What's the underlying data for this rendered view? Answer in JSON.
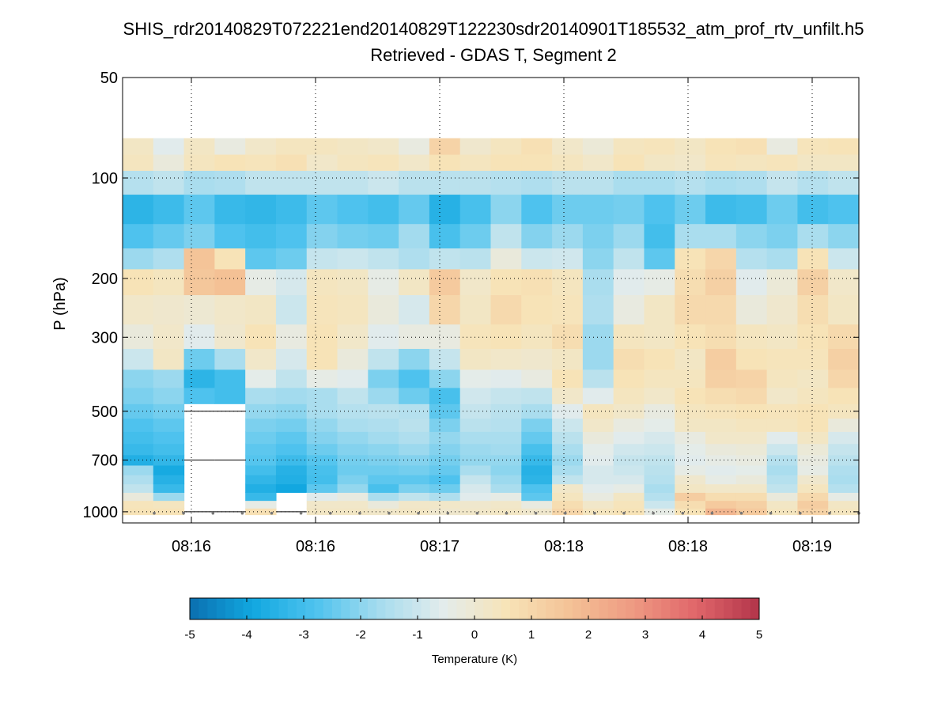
{
  "chart_data": {
    "type": "heatmap",
    "title": "SHIS_rdr20140829T072221end20140829T122230sdr20140901T185532_atm_prof_rtv_unfilt.h5",
    "subtitle": "Retrieved - GDAS T, Segment 2",
    "ylabel": "P (hPa)",
    "xlabel": "",
    "y_scale": "log",
    "y_reversed": true,
    "ylim": [
      50,
      1080
    ],
    "y_ticks": [
      50,
      100,
      200,
      300,
      500,
      700,
      1000
    ],
    "y_tick_labels": [
      "50",
      "100",
      "200",
      "300",
      "500",
      "700",
      "1000"
    ],
    "x_tick_labels": [
      "08:16",
      "08:16",
      "08:17",
      "08:18",
      "08:18",
      "08:19"
    ],
    "grid": true,
    "colorbar": {
      "label": "Temperature (K)",
      "ticks": [
        -5,
        -4,
        -3,
        -2,
        -1,
        0,
        1,
        2,
        3,
        4,
        5
      ],
      "tick_labels": [
        "-5",
        "-4",
        "-3",
        "-2",
        "-1",
        "0",
        "1",
        "2",
        "3",
        "4",
        "5"
      ],
      "range": [
        -5,
        5
      ],
      "colormap": [
        "#0b6fb0",
        "#12a8e0",
        "#4fc3ee",
        "#a6dcee",
        "#e3ecec",
        "#f7e4b8",
        "#f4c296",
        "#ee9a82",
        "#e0666a",
        "#b2344a"
      ]
    },
    "columns": 24,
    "profile_levels": [
      1000,
      950,
      900,
      850,
      800,
      750,
      700,
      650,
      600,
      550,
      500,
      450,
      400,
      350,
      300,
      250,
      200,
      175,
      150,
      125,
      100,
      90,
      80
    ],
    "values": [
      [
        0.6,
        0.5,
        -0.2,
        -1.2,
        -1.5,
        -1.8,
        -3.6,
        -3.2,
        -3.0,
        -2.8,
        -2.5,
        -2.2,
        -2.0,
        -1.0,
        -0.2,
        0.2,
        0.6,
        -1.8,
        -2.8,
        -3.4,
        -1.4,
        0.4,
        0.3
      ],
      [
        0.6,
        0.4,
        -1.8,
        -3.2,
        -3.5,
        -3.8,
        -3.3,
        -3.0,
        -2.8,
        -2.6,
        -2.3,
        -2.0,
        -1.8,
        0.3,
        0.2,
        0.1,
        0.4,
        -1.5,
        -2.5,
        -3.1,
        -1.2,
        -0.2,
        -0.6
      ],
      [
        null,
        null,
        null,
        null,
        null,
        null,
        null,
        null,
        null,
        null,
        null,
        -2.8,
        -3.4,
        -2.4,
        -0.6,
        0.0,
        1.5,
        1.6,
        -2.2,
        -2.6,
        -1.6,
        0.4,
        0.3
      ],
      [
        null,
        null,
        null,
        null,
        null,
        null,
        null,
        null,
        null,
        null,
        null,
        -3.0,
        -3.0,
        -1.6,
        0.1,
        0.2,
        1.7,
        0.6,
        -2.8,
        -3.2,
        -1.5,
        0.6,
        -0.3
      ],
      [
        0.7,
        -0.4,
        -3.2,
        -3.6,
        -3.3,
        -3.0,
        -2.7,
        -2.6,
        -2.4,
        -2.2,
        -1.9,
        -1.6,
        -0.5,
        0.2,
        0.6,
        0.3,
        -0.4,
        -2.6,
        -3.0,
        -3.3,
        -1.2,
        0.5,
        0.2
      ],
      [
        null,
        null,
        null,
        -3.9,
        -3.6,
        -3.5,
        -3.1,
        -2.8,
        -2.6,
        -2.3,
        -2.0,
        -1.7,
        -1.2,
        -0.8,
        -0.3,
        -1.0,
        -0.8,
        -2.4,
        -2.8,
        -3.1,
        -1.2,
        0.7,
        0.4
      ],
      [
        0.3,
        0.2,
        -0.6,
        -2.6,
        -3.0,
        -2.9,
        -2.7,
        -2.4,
        -2.1,
        -1.9,
        -1.6,
        -1.6,
        -0.4,
        0.6,
        0.6,
        0.5,
        0.4,
        -1.1,
        -2.1,
        -2.6,
        -1.2,
        0.2,
        0.4
      ],
      [
        0.3,
        0.2,
        -0.3,
        -1.9,
        -2.2,
        -2.4,
        -2.3,
        -2.1,
        -1.9,
        -1.6,
        -1.4,
        -1.2,
        -0.6,
        -0.2,
        0.2,
        0.4,
        0.3,
        -1.0,
        -2.3,
        -2.8,
        -1.2,
        0.4,
        0.3
      ],
      [
        0.2,
        -0.2,
        -1.6,
        -2.9,
        -2.6,
        -2.4,
        -2.2,
        -2.0,
        -1.7,
        -1.5,
        -1.3,
        -1.8,
        -2.2,
        -1.2,
        -0.6,
        -0.2,
        -0.4,
        -1.2,
        -2.4,
        -3.0,
        -1.0,
        0.5,
        0.2
      ],
      [
        0.3,
        0.2,
        -1.2,
        -2.2,
        -2.6,
        -2.3,
        -2.1,
        -1.8,
        -1.5,
        -1.3,
        -1.4,
        -2.4,
        -2.8,
        -2.0,
        -0.3,
        -0.8,
        0.3,
        -1.5,
        -1.7,
        -2.5,
        -1.3,
        0.2,
        -0.3
      ],
      [
        0.1,
        0.2,
        -1.5,
        -2.4,
        -2.8,
        -2.5,
        -2.3,
        -2.1,
        -1.9,
        -2.2,
        -2.6,
        -2.9,
        -2.0,
        -1.1,
        -0.3,
        1.0,
        1.4,
        -1.2,
        -2.9,
        -3.5,
        -1.3,
        0.6,
        1.1
      ],
      [
        0.2,
        0.1,
        -0.6,
        -0.8,
        -1.1,
        -1.6,
        -1.9,
        -1.8,
        -1.6,
        -1.3,
        -1.1,
        -0.9,
        -0.5,
        0.3,
        0.5,
        0.3,
        0.2,
        -1.3,
        -2.4,
        -2.9,
        -1.3,
        0.4,
        0.1
      ],
      [
        0.3,
        0.2,
        -0.4,
        -1.6,
        -1.8,
        -2.0,
        -1.9,
        -1.7,
        -1.6,
        -1.4,
        -1.3,
        -1.1,
        -0.6,
        0.2,
        0.6,
        0.9,
        0.6,
        -0.2,
        -1.2,
        -2.0,
        -1.4,
        0.6,
        0.4
      ],
      [
        0.1,
        -0.3,
        -2.6,
        -2.8,
        -3.4,
        -3.5,
        -3.2,
        -2.9,
        -2.5,
        -2.2,
        -1.6,
        -1.2,
        -0.3,
        0.1,
        0.4,
        0.6,
        0.7,
        -1.0,
        -2.1,
        -2.8,
        -1.5,
        0.6,
        0.7
      ],
      [
        1.0,
        0.8,
        0.4,
        0.2,
        -1.2,
        -1.6,
        -1.8,
        -1.6,
        -1.3,
        -1.0,
        -0.6,
        0.2,
        0.6,
        0.3,
        0.8,
        0.5,
        0.4,
        -0.9,
        -1.8,
        -2.4,
        -1.3,
        0.4,
        0.2
      ],
      [
        0.4,
        0.2,
        -0.3,
        -0.6,
        -0.8,
        -0.8,
        -0.6,
        -0.5,
        -0.2,
        0.2,
        0.4,
        -0.6,
        -1.3,
        -1.8,
        -1.8,
        -1.5,
        -1.6,
        -2.0,
        -2.2,
        -2.4,
        -1.3,
        0.2,
        -0.1
      ],
      [
        0.6,
        0.5,
        0.3,
        -0.4,
        -0.8,
        -1.0,
        -1.1,
        -0.9,
        -0.6,
        -0.3,
        0.2,
        0.4,
        0.6,
        0.8,
        0.4,
        -0.3,
        -0.6,
        -1.2,
        -1.8,
        -2.3,
        -1.6,
        0.6,
        0.4
      ],
      [
        -0.4,
        -1.0,
        -1.4,
        -1.6,
        -1.4,
        -1.3,
        -1.2,
        -1.0,
        -0.8,
        -0.5,
        -0.3,
        0.2,
        0.4,
        0.6,
        0.3,
        0.3,
        -0.4,
        -2.6,
        -3.0,
        -2.8,
        -1.6,
        0.3,
        0.5
      ],
      [
        0.6,
        0.8,
        1.3,
        0.3,
        0.1,
        -0.4,
        -0.6,
        -0.5,
        -0.3,
        0.3,
        0.4,
        0.6,
        0.4,
        0.3,
        0.6,
        0.9,
        0.8,
        0.6,
        -1.6,
        -2.4,
        -1.4,
        0.2,
        0.3
      ],
      [
        2.0,
        1.4,
        0.8,
        0.2,
        -0.4,
        -0.6,
        -0.4,
        -0.2,
        0.2,
        0.3,
        0.5,
        0.8,
        1.2,
        1.3,
        0.8,
        0.9,
        1.2,
        1.0,
        -1.6,
        -3.1,
        -1.6,
        0.5,
        0.6
      ],
      [
        1.4,
        1.2,
        0.8,
        0.2,
        -0.2,
        -0.5,
        -0.3,
        -0.1,
        0.2,
        0.4,
        0.6,
        0.9,
        1.1,
        0.6,
        0.4,
        -0.2,
        -0.6,
        -1.4,
        -2.0,
        -3.0,
        -1.5,
        0.4,
        0.7
      ],
      [
        0.4,
        0.3,
        -0.2,
        -1.2,
        -1.4,
        -1.6,
        -1.4,
        -1.0,
        -0.6,
        0.4,
        0.5,
        0.2,
        0.4,
        0.5,
        0.3,
        0.1,
        -0.1,
        -1.6,
        -2.2,
        -2.4,
        -1.1,
        0.5,
        -0.3
      ],
      [
        1.1,
        1.3,
        0.9,
        0.4,
        0.1,
        -0.4,
        -0.3,
        -0.1,
        0.3,
        0.6,
        0.6,
        0.4,
        0.3,
        0.5,
        0.6,
        0.8,
        1.2,
        0.6,
        -1.6,
        -3.0,
        -1.4,
        0.3,
        0.5
      ],
      [
        0.4,
        0.3,
        -0.4,
        -1.4,
        -1.6,
        -1.5,
        -1.3,
        -1.1,
        -0.8,
        -0.2,
        0.4,
        0.6,
        1.0,
        1.2,
        0.9,
        0.3,
        0.2,
        -1.0,
        -2.0,
        -2.8,
        -1.2,
        0.3,
        0.6
      ]
    ]
  }
}
